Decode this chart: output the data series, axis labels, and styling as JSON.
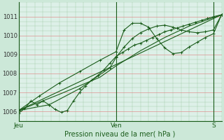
{
  "background_color": "#cce8d8",
  "plot_bg_color": "#ddf0e8",
  "grid_color_major": "#e08080",
  "grid_color_minor": "#88bb88",
  "line_color": "#1a5c1a",
  "ylim": [
    1005.5,
    1011.5
  ],
  "xlim": [
    0,
    100
  ],
  "ylabel_values": [
    1006,
    1007,
    1008,
    1009,
    1010,
    1011
  ],
  "xlabel": "Pression niveau de la mer( hPa )",
  "xtick_labels": [
    "Jeu",
    "Ven",
    "S"
  ],
  "xtick_positions": [
    0,
    48,
    96
  ],
  "line1_x": [
    0,
    3,
    6,
    9,
    12,
    15,
    18,
    21,
    24,
    27,
    30,
    33,
    36,
    39,
    42,
    45,
    48,
    51,
    54,
    57,
    60,
    63,
    66,
    69,
    72,
    75,
    78,
    81,
    84,
    87,
    90,
    93,
    96,
    100
  ],
  "line1_y": [
    1005.9,
    1006.15,
    1006.55,
    1006.35,
    1006.55,
    1006.35,
    1006.1,
    1005.95,
    1006.05,
    1006.55,
    1007.0,
    1007.35,
    1007.65,
    1007.9,
    1008.2,
    1008.55,
    1008.9,
    1009.1,
    1009.3,
    1009.5,
    1009.6,
    1009.75,
    1009.9,
    1010.05,
    1010.2,
    1010.3,
    1010.4,
    1010.5,
    1010.6,
    1010.7,
    1010.8,
    1010.9,
    1011.0,
    1011.1
  ],
  "line2_x": [
    0,
    10,
    20,
    30,
    40,
    48,
    52,
    56,
    60,
    64,
    68,
    72,
    76,
    80,
    84,
    88,
    92,
    96,
    100
  ],
  "line2_y": [
    1006.05,
    1006.8,
    1007.5,
    1008.1,
    1008.7,
    1009.15,
    1010.3,
    1010.65,
    1010.65,
    1010.45,
    1009.85,
    1009.35,
    1009.05,
    1009.1,
    1009.4,
    1009.65,
    1009.9,
    1010.1,
    1011.1
  ],
  "line3_x": [
    0,
    15,
    30,
    45,
    48,
    52,
    56,
    60,
    64,
    68,
    72,
    76,
    80,
    84,
    88,
    92,
    96,
    100
  ],
  "line3_y": [
    1006.05,
    1006.35,
    1007.2,
    1008.3,
    1008.85,
    1009.4,
    1009.85,
    1010.15,
    1010.35,
    1010.5,
    1010.55,
    1010.45,
    1010.3,
    1010.2,
    1010.15,
    1010.2,
    1010.3,
    1011.1
  ],
  "line4_x": [
    0,
    100
  ],
  "line4_y": [
    1006.05,
    1011.1
  ],
  "line5_x": [
    0,
    20,
    40,
    48,
    60,
    72,
    84,
    96,
    100
  ],
  "line5_y": [
    1006.05,
    1006.9,
    1007.8,
    1008.4,
    1009.2,
    1009.9,
    1010.5,
    1010.95,
    1011.1
  ]
}
